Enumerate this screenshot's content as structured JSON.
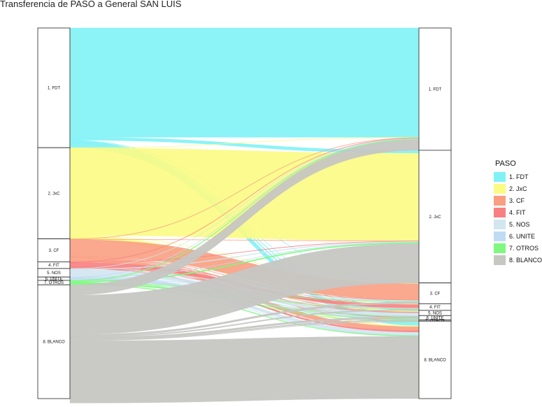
{
  "chart_data": {
    "type": "alluvial",
    "title": "Transferencia de PASO a General SAN LUIS",
    "legend_title": "PASO",
    "legend_position": "right",
    "categories": [
      "1. FDT",
      "2. JxC",
      "3. CF",
      "4. FIT",
      "5. NOS",
      "6. UNITE",
      "7. OTROS",
      "8. BLANCO"
    ],
    "colors": [
      "#80F2F6",
      "#FBFB83",
      "#FA9E82",
      "#F88080",
      "#D2E6F0",
      "#C0DCF4",
      "#80F880",
      "#C6C6C3"
    ],
    "paso_totals": [
      32.3,
      24.6,
      6.2,
      1.8,
      2.3,
      0.9,
      1.2,
      30.7
    ],
    "general_totals": [
      33.0,
      35.8,
      5.6,
      1.8,
      1.4,
      1.2,
      0.3,
      20.9
    ],
    "flows": [
      [
        29.5,
        0.8,
        0.1,
        0.1,
        0.2,
        0.3,
        0.1,
        1.2
      ],
      [
        0.1,
        23.6,
        0.1,
        0.1,
        0.2,
        0.1,
        0.1,
        0.3
      ],
      [
        0.1,
        0.1,
        4.4,
        0.1,
        0.2,
        0.1,
        0.1,
        1.1
      ],
      [
        0.1,
        0.1,
        0.1,
        0.9,
        0.1,
        0.1,
        0.0,
        0.4
      ],
      [
        0.1,
        0.2,
        0.2,
        0.1,
        0.8,
        0.1,
        0.0,
        0.8
      ],
      [
        0.1,
        0.1,
        0.1,
        0.1,
        0.1,
        0.3,
        0.0,
        0.1
      ],
      [
        0.2,
        0.3,
        0.1,
        0.1,
        0.1,
        0.1,
        0.1,
        0.2
      ],
      [
        2.8,
        10.6,
        0.5,
        0.3,
        0.5,
        0.3,
        0.1,
        16.8
      ]
    ]
  }
}
